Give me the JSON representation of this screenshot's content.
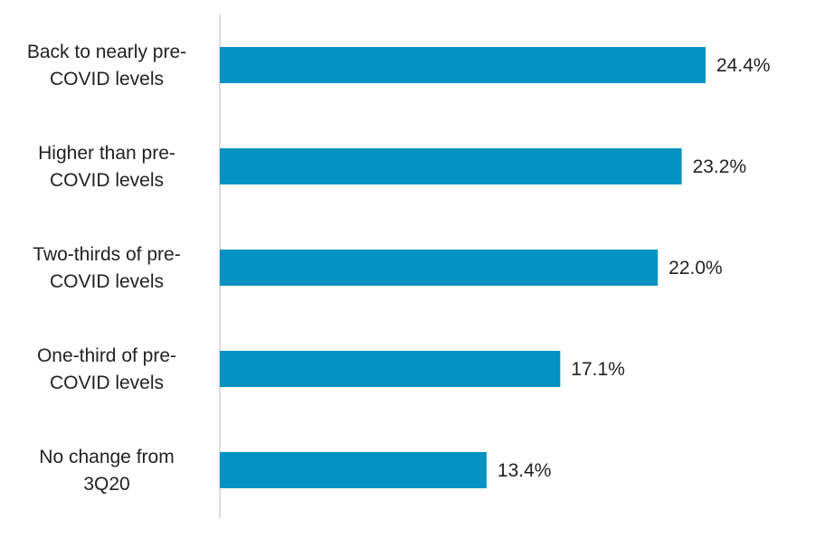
{
  "chart_data": {
    "type": "bar",
    "orientation": "horizontal",
    "title": "",
    "xlabel": "",
    "ylabel": "",
    "categories": [
      [
        "Back to nearly pre-",
        "COVID levels"
      ],
      [
        "Higher than pre-",
        "COVID levels"
      ],
      [
        "Two-thirds of pre-",
        "COVID levels"
      ],
      [
        "One-third of pre-",
        "COVID levels"
      ],
      [
        "No change from",
        "3Q20"
      ]
    ],
    "values": [
      24.4,
      23.2,
      22.0,
      17.1,
      13.4
    ],
    "value_labels": [
      "24.4%",
      "23.2%",
      "22.0%",
      "17.1%",
      "13.4%"
    ],
    "unit": "%",
    "xlim": [
      0,
      30
    ],
    "bar_color": "#0492c2",
    "axis_color": "#d0d0d0",
    "grid": false,
    "legend": "none"
  }
}
